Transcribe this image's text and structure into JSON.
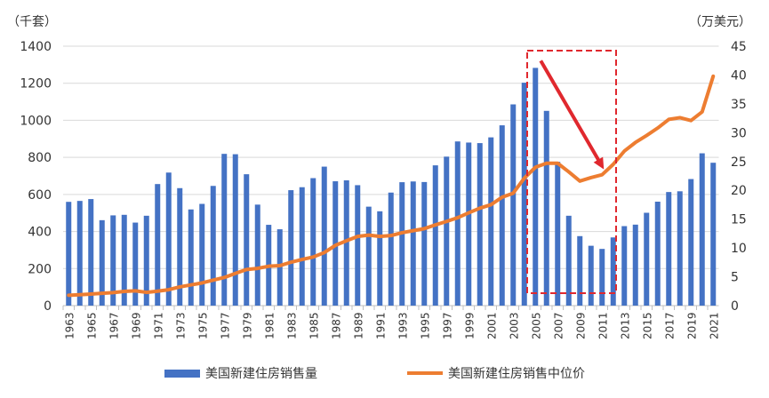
{
  "chart_data": {
    "type": "bar+line",
    "left_unit": "（千套）",
    "right_unit": "（万美元）",
    "left_ylim": [
      0,
      1400
    ],
    "right_ylim": [
      0,
      45
    ],
    "left_ticks": [
      0,
      200,
      400,
      600,
      800,
      1000,
      1200,
      1400
    ],
    "right_ticks": [
      0,
      5,
      10,
      15,
      20,
      25,
      30,
      35,
      40,
      45
    ],
    "grid": true,
    "legend_placement": "bottom",
    "x": [
      1963,
      1964,
      1965,
      1966,
      1967,
      1968,
      1969,
      1970,
      1971,
      1972,
      1973,
      1974,
      1975,
      1976,
      1977,
      1978,
      1979,
      1980,
      1981,
      1982,
      1983,
      1984,
      1985,
      1986,
      1987,
      1988,
      1989,
      1990,
      1991,
      1992,
      1993,
      1994,
      1995,
      1996,
      1997,
      1998,
      1999,
      2000,
      2001,
      2002,
      2003,
      2004,
      2005,
      2006,
      2007,
      2008,
      2009,
      2010,
      2011,
      2012,
      2013,
      2014,
      2015,
      2016,
      2017,
      2018,
      2019,
      2020,
      2021
    ],
    "series": [
      {
        "name": "美国新建住房销售量",
        "type": "bar",
        "axis": "left",
        "color": "#4472c4",
        "values": [
          560,
          565,
          575,
          461,
          487,
          490,
          448,
          485,
          656,
          718,
          634,
          519,
          549,
          646,
          819,
          817,
          709,
          545,
          436,
          412,
          623,
          639,
          688,
          750,
          671,
          676,
          650,
          534,
          509,
          610,
          666,
          670,
          667,
          757,
          804,
          886,
          880,
          877,
          908,
          973,
          1086,
          1203,
          1283,
          1051,
          776,
          485,
          375,
          323,
          306,
          368,
          429,
          437,
          501,
          561,
          613,
          617,
          683,
          822,
          771
        ]
      },
      {
        "name": "美国新建住房销售中位价",
        "type": "line",
        "axis": "right",
        "color": "#ed7d31",
        "values": [
          1.8,
          1.89,
          2.0,
          2.14,
          2.26,
          2.47,
          2.56,
          2.3,
          2.5,
          2.76,
          3.25,
          3.59,
          3.93,
          4.42,
          4.88,
          5.58,
          6.26,
          6.46,
          6.83,
          6.93,
          7.53,
          8.0,
          8.43,
          9.2,
          10.45,
          11.25,
          12.0,
          12.23,
          12.0,
          12.15,
          12.65,
          13.0,
          13.35,
          14.0,
          14.6,
          15.25,
          16.1,
          16.9,
          17.5,
          18.8,
          19.5,
          22.1,
          24.0,
          24.7,
          24.7,
          23.2,
          21.6,
          22.2,
          22.7,
          24.5,
          26.8,
          28.3,
          29.5,
          30.8,
          32.3,
          32.6,
          32.1,
          33.6,
          39.8
        ]
      }
    ],
    "annotations": [
      {
        "type": "dashed-box",
        "color": "#e0282e",
        "x_range": [
          2005,
          2012
        ]
      },
      {
        "type": "arrow",
        "color": "#e0282e",
        "from": [
          2005,
          1283
        ],
        "to": [
          2011,
          400
        ]
      }
    ]
  }
}
